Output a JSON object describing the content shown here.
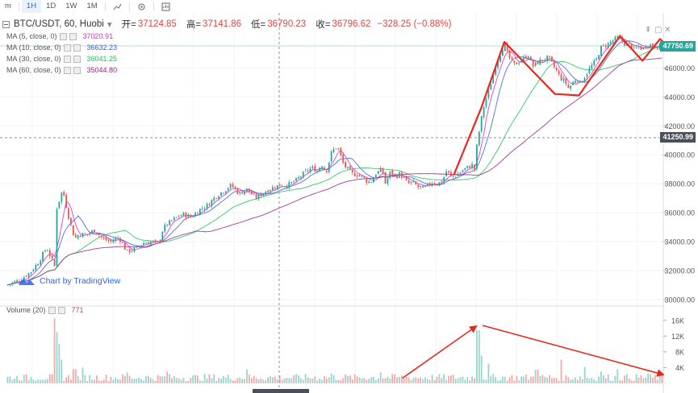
{
  "toolbar": {
    "items": [
      {
        "label": "m",
        "active": false
      },
      {
        "label": "1H",
        "active": true
      },
      {
        "label": "1D",
        "active": false
      },
      {
        "label": "1W",
        "active": false
      },
      {
        "label": "1M",
        "active": false
      }
    ]
  },
  "legend": {
    "symbol": "BTC/USDT, 60, Huobi",
    "open_label": "开=",
    "open": "37124.85",
    "high_label": "高=",
    "high": "37141.86",
    "low_label": "低=",
    "low": "36790.23",
    "close_label": "收=",
    "close": "36796.62",
    "change": "−328.25 (−0.88%)",
    "ma": [
      {
        "label": "MA (5, close, 0)",
        "value": "37020.91",
        "color": "#d82bd0"
      },
      {
        "label": "MA (10, close, 0)",
        "value": "36632.23",
        "color": "#3b63c7"
      },
      {
        "label": "MA (30, close, 0)",
        "value": "36041.25",
        "color": "#21c35a"
      },
      {
        "label": "MA (60, close, 0)",
        "value": "35044.80",
        "color": "#9c2686"
      }
    ],
    "volume_label": "Volume (20)",
    "volume_value": "771",
    "branding": "Chart by TradingView"
  },
  "price_tags": {
    "last": "47750.69",
    "crosshair": "41250.99"
  },
  "colors": {
    "up": "#26a69a",
    "down": "#ef5350",
    "annotation": "#e8291e",
    "grid": "#f0f3f6",
    "axis_text": "#555555"
  },
  "chart_data": {
    "type": "candlestick",
    "title": "BTC/USDT, 60, Huobi",
    "price_axis": {
      "ylim": [
        30000,
        48800
      ],
      "ticks": [
        30000,
        32000,
        34000,
        36000,
        38000,
        40000,
        42000,
        44000,
        46000
      ]
    },
    "volume_axis": {
      "ylim": [
        0,
        18000
      ],
      "ticks": [
        4000,
        8000,
        12000,
        16000
      ],
      "tick_labels": [
        "4K",
        "8K",
        "12K",
        "16K"
      ]
    },
    "candle_count": 280,
    "close_anchors": [
      [
        0,
        31000
      ],
      [
        15,
        31300
      ],
      [
        30,
        31900
      ],
      [
        40,
        32600
      ],
      [
        50,
        33600
      ],
      [
        60,
        32300
      ],
      [
        62,
        36200
      ],
      [
        70,
        37600
      ],
      [
        78,
        35600
      ],
      [
        85,
        34200
      ],
      [
        90,
        34500
      ],
      [
        100,
        34500
      ],
      [
        110,
        34800
      ],
      [
        120,
        34200
      ],
      [
        130,
        34000
      ],
      [
        140,
        34300
      ],
      [
        150,
        33300
      ],
      [
        160,
        33500
      ],
      [
        170,
        33900
      ],
      [
        180,
        34000
      ],
      [
        190,
        33900
      ],
      [
        195,
        34900
      ],
      [
        200,
        35200
      ],
      [
        210,
        35600
      ],
      [
        220,
        35900
      ],
      [
        230,
        35700
      ],
      [
        240,
        36200
      ],
      [
        250,
        36500
      ],
      [
        260,
        37100
      ],
      [
        270,
        37500
      ],
      [
        280,
        37900
      ],
      [
        290,
        37300
      ],
      [
        295,
        37500
      ],
      [
        300,
        37600
      ],
      [
        310,
        37000
      ],
      [
        320,
        37400
      ],
      [
        330,
        37700
      ],
      [
        340,
        37900
      ],
      [
        350,
        37900
      ],
      [
        360,
        38200
      ],
      [
        370,
        38700
      ],
      [
        380,
        39100
      ],
      [
        388,
        38900
      ],
      [
        392,
        39400
      ],
      [
        398,
        38800
      ],
      [
        405,
        40200
      ],
      [
        412,
        40600
      ],
      [
        420,
        39300
      ],
      [
        430,
        38700
      ],
      [
        440,
        38600
      ],
      [
        445,
        38400
      ],
      [
        450,
        38100
      ],
      [
        455,
        38200
      ],
      [
        460,
        38700
      ],
      [
        468,
        39000
      ],
      [
        472,
        38000
      ],
      [
        478,
        38800
      ],
      [
        485,
        38500
      ],
      [
        490,
        38700
      ],
      [
        500,
        38000
      ],
      [
        505,
        38100
      ],
      [
        515,
        37700
      ],
      [
        520,
        37700
      ],
      [
        530,
        38100
      ],
      [
        537,
        38000
      ],
      [
        543,
        38200
      ],
      [
        548,
        38900
      ],
      [
        555,
        38400
      ],
      [
        563,
        38700
      ],
      [
        570,
        39000
      ],
      [
        580,
        39300
      ],
      [
        583,
        39000
      ],
      [
        585,
        40300
      ],
      [
        590,
        42100
      ],
      [
        595,
        43500
      ],
      [
        600,
        44300
      ],
      [
        610,
        46300
      ],
      [
        620,
        47700
      ],
      [
        625,
        46800
      ],
      [
        632,
        46200
      ],
      [
        640,
        46500
      ],
      [
        650,
        46900
      ],
      [
        655,
        46100
      ],
      [
        665,
        46500
      ],
      [
        675,
        46700
      ],
      [
        685,
        45800
      ],
      [
        690,
        45300
      ],
      [
        695,
        45100
      ],
      [
        700,
        44600
      ],
      [
        710,
        45300
      ],
      [
        715,
        44900
      ],
      [
        720,
        45400
      ],
      [
        728,
        46100
      ],
      [
        735,
        46600
      ],
      [
        740,
        47400
      ],
      [
        748,
        47600
      ],
      [
        755,
        47900
      ],
      [
        762,
        48100
      ],
      [
        770,
        47700
      ],
      [
        778,
        47600
      ],
      [
        782,
        47200
      ],
      [
        786,
        47500
      ],
      [
        792,
        47300
      ],
      [
        798,
        47600
      ],
      [
        805,
        47600
      ],
      [
        812,
        47400
      ],
      [
        818,
        47800
      ]
    ],
    "volume_spikes": [
      [
        60,
        16500
      ],
      [
        62,
        13000
      ],
      [
        64,
        10000
      ],
      [
        66,
        9000
      ],
      [
        68,
        6000
      ],
      [
        85,
        3600
      ],
      [
        95,
        4000
      ],
      [
        150,
        2800
      ],
      [
        200,
        3000
      ],
      [
        300,
        3500
      ],
      [
        405,
        2500
      ],
      [
        465,
        2800
      ],
      [
        585,
        9500
      ],
      [
        587,
        13500
      ],
      [
        592,
        7000
      ],
      [
        600,
        5000
      ],
      [
        660,
        3500
      ],
      [
        690,
        6000
      ],
      [
        720,
        4200
      ],
      [
        740,
        3000
      ],
      [
        760,
        3500
      ],
      [
        800,
        2500
      ]
    ],
    "annotations": [
      {
        "type": "zigzag",
        "panel": "price",
        "points": [
          [
            557,
            38600
          ],
          [
            591,
            43200
          ],
          [
            620,
            47800
          ],
          [
            683,
            44200
          ],
          [
            713,
            44100
          ],
          [
            764,
            48200
          ],
          [
            792,
            46500
          ],
          [
            814,
            48000
          ],
          [
            830,
            47100
          ],
          [
            863,
            49000
          ]
        ]
      },
      {
        "type": "arrow",
        "panel": "volume",
        "points": [
          [
            493,
            1300
          ],
          [
            585,
            14500
          ]
        ]
      },
      {
        "type": "arrow",
        "panel": "volume",
        "points": [
          [
            593,
            14700
          ],
          [
            818,
            2200
          ]
        ]
      }
    ]
  }
}
